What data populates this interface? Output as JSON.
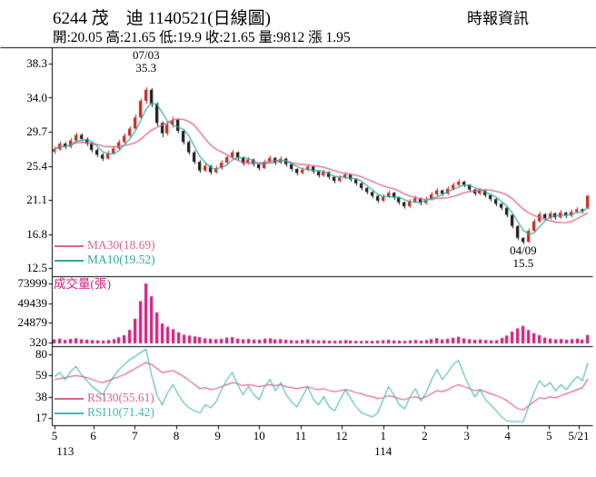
{
  "header": {
    "title": "6244 茂　迪 1140521(日線圖)",
    "source": "時報資訊",
    "info": "開:20.05 高:21.65 低:19.9 收:21.65 量:9812 漲 1.95"
  },
  "legends": {
    "ma30": "MA30(18.69)",
    "ma10": "MA10(19.52)",
    "volume": "成交量(張)",
    "rsi30": "RSI30(55.61)",
    "rsi10": "RSI10(71.42)"
  },
  "annotations": {
    "peak_date": "07/03",
    "peak_value": "35.3",
    "trough_date": "04/09",
    "trough_value": "15.5"
  },
  "colors": {
    "up": "#c9271c",
    "down": "#1c1c1c",
    "ma30": "#e0638f",
    "ma10": "#2ea8a4",
    "volume": "#d61f7e",
    "rsi30": "#e0638f",
    "rsi10": "#49b8b4",
    "axis": "#000000"
  },
  "chart_data": {
    "type": "candlestick",
    "title": "6244 茂　迪 1140521(日線圖)",
    "price_range": [
      12.5,
      38.3
    ],
    "volume_range": [
      320,
      73999
    ],
    "rsi_range": [
      17,
      80
    ],
    "price_ticks": [
      "38.3",
      "34.0",
      "29.7",
      "25.4",
      "21.1",
      "16.8",
      "12.5"
    ],
    "volume_ticks": [
      "73999",
      "49439",
      "24879",
      "320"
    ],
    "rsi_ticks": [
      "80",
      "59",
      "38",
      "17"
    ],
    "x_ticks": [
      {
        "label": "5",
        "pos": 0.5
      },
      {
        "label": "6",
        "pos": 7.7
      },
      {
        "label": "7",
        "pos": 15.4
      },
      {
        "label": "8",
        "pos": 23.1
      },
      {
        "label": "9",
        "pos": 30.8
      },
      {
        "label": "10",
        "pos": 38.5
      },
      {
        "label": "11",
        "pos": 46.2
      },
      {
        "label": "12",
        "pos": 53.8
      },
      {
        "label": "1",
        "pos": 61.5
      },
      {
        "label": "2",
        "pos": 69.2
      },
      {
        "label": "3",
        "pos": 77.0
      },
      {
        "label": "4",
        "pos": 84.6
      },
      {
        "label": "5",
        "pos": 92.3
      },
      {
        "label": "5/21",
        "pos": 97.8
      }
    ],
    "year_ticks": [
      {
        "label": "113",
        "pos": 2.5
      },
      {
        "label": "114",
        "pos": 61.5
      }
    ],
    "ohlc_today": {
      "open": 20.05,
      "high": 21.65,
      "low": 19.9,
      "close": 21.65,
      "volume": 9812,
      "change": 1.95
    },
    "ma30_last": 18.69,
    "ma10_last": 19.52,
    "rsi30_last": 55.61,
    "rsi10_last": 71.42,
    "candles": [
      [
        27.2,
        27.8,
        26.9,
        27.5
      ],
      [
        27.5,
        28.5,
        27.3,
        28.2
      ],
      [
        28.2,
        28.4,
        27.5,
        27.8
      ],
      [
        27.8,
        28.9,
        27.6,
        28.6
      ],
      [
        28.6,
        29.6,
        28.4,
        29.3
      ],
      [
        29.3,
        29.5,
        28.5,
        28.8
      ],
      [
        28.8,
        29.0,
        27.9,
        28.2
      ],
      [
        28.2,
        28.3,
        27.1,
        27.4
      ],
      [
        27.4,
        27.6,
        26.5,
        26.8
      ],
      [
        26.8,
        27.0,
        26.0,
        26.3
      ],
      [
        26.3,
        27.3,
        26.2,
        27.0
      ],
      [
        27.0,
        27.9,
        26.8,
        27.6
      ],
      [
        27.6,
        28.7,
        27.4,
        28.4
      ],
      [
        28.4,
        29.5,
        28.2,
        29.2
      ],
      [
        29.2,
        30.4,
        29.0,
        30.1
      ],
      [
        30.1,
        31.9,
        29.9,
        31.5
      ],
      [
        31.5,
        33.9,
        31.3,
        33.6
      ],
      [
        33.6,
        35.3,
        33.2,
        35.0
      ],
      [
        35.0,
        35.2,
        32.8,
        33.2
      ],
      [
        33.2,
        33.4,
        30.4,
        30.8
      ],
      [
        30.8,
        31.0,
        29.0,
        29.5
      ],
      [
        29.5,
        30.9,
        29.2,
        30.6
      ],
      [
        30.6,
        31.6,
        30.2,
        31.2
      ],
      [
        31.2,
        31.3,
        29.5,
        29.8
      ],
      [
        29.8,
        30.0,
        28.1,
        28.4
      ],
      [
        28.4,
        28.6,
        26.8,
        27.1
      ],
      [
        27.1,
        27.3,
        25.6,
        25.9
      ],
      [
        25.9,
        26.1,
        24.5,
        24.8
      ],
      [
        24.8,
        25.7,
        24.6,
        25.4
      ],
      [
        25.4,
        25.5,
        24.3,
        24.6
      ],
      [
        24.6,
        25.4,
        24.4,
        25.1
      ],
      [
        25.1,
        26.1,
        24.9,
        25.8
      ],
      [
        25.8,
        26.8,
        25.6,
        26.5
      ],
      [
        26.5,
        27.4,
        26.3,
        27.1
      ],
      [
        27.1,
        27.2,
        26.1,
        26.4
      ],
      [
        26.4,
        26.6,
        25.4,
        25.7
      ],
      [
        25.7,
        26.5,
        25.5,
        26.2
      ],
      [
        26.2,
        26.3,
        25.3,
        25.6
      ],
      [
        25.6,
        25.8,
        24.8,
        25.1
      ],
      [
        25.1,
        26.2,
        25.0,
        25.9
      ],
      [
        25.9,
        26.7,
        25.7,
        26.4
      ],
      [
        26.4,
        26.5,
        25.5,
        25.8
      ],
      [
        25.8,
        26.6,
        25.6,
        26.3
      ],
      [
        26.3,
        26.4,
        25.3,
        25.6
      ],
      [
        25.6,
        25.7,
        24.7,
        25.0
      ],
      [
        25.0,
        25.1,
        24.2,
        24.5
      ],
      [
        24.5,
        25.2,
        24.3,
        24.9
      ],
      [
        24.9,
        25.6,
        24.7,
        25.3
      ],
      [
        25.3,
        25.4,
        24.4,
        24.7
      ],
      [
        24.7,
        24.8,
        23.9,
        24.2
      ],
      [
        24.2,
        24.9,
        24.0,
        24.6
      ],
      [
        24.6,
        24.7,
        23.7,
        24.0
      ],
      [
        24.0,
        24.1,
        23.2,
        23.5
      ],
      [
        23.5,
        24.2,
        23.3,
        23.9
      ],
      [
        23.9,
        24.6,
        23.7,
        24.3
      ],
      [
        24.3,
        24.4,
        23.4,
        23.7
      ],
      [
        23.7,
        23.8,
        22.9,
        23.2
      ],
      [
        23.2,
        23.3,
        22.3,
        22.6
      ],
      [
        22.6,
        22.7,
        21.8,
        22.1
      ],
      [
        22.1,
        22.2,
        21.3,
        21.6
      ],
      [
        21.6,
        21.7,
        20.7,
        21.0
      ],
      [
        21.0,
        21.8,
        20.8,
        21.5
      ],
      [
        21.5,
        22.3,
        21.3,
        22.0
      ],
      [
        22.0,
        22.1,
        21.1,
        21.4
      ],
      [
        21.4,
        21.5,
        20.5,
        20.8
      ],
      [
        20.8,
        20.9,
        20.0,
        20.3
      ],
      [
        20.3,
        21.2,
        20.1,
        20.9
      ],
      [
        20.9,
        21.6,
        20.7,
        21.3
      ],
      [
        21.3,
        21.4,
        20.4,
        20.7
      ],
      [
        20.7,
        21.5,
        20.5,
        21.2
      ],
      [
        21.2,
        22.1,
        21.0,
        21.8
      ],
      [
        21.8,
        22.6,
        21.6,
        22.3
      ],
      [
        22.3,
        22.4,
        21.6,
        21.9
      ],
      [
        21.9,
        22.8,
        21.7,
        22.5
      ],
      [
        22.5,
        23.3,
        22.3,
        23.0
      ],
      [
        23.0,
        23.7,
        22.8,
        23.4
      ],
      [
        23.4,
        23.5,
        22.7,
        23.0
      ],
      [
        23.0,
        23.1,
        22.1,
        22.4
      ],
      [
        22.4,
        22.5,
        21.6,
        21.9
      ],
      [
        21.9,
        22.6,
        21.7,
        22.3
      ],
      [
        22.3,
        22.4,
        21.4,
        21.7
      ],
      [
        21.7,
        21.8,
        20.9,
        21.2
      ],
      [
        21.2,
        21.3,
        20.3,
        20.6
      ],
      [
        20.6,
        20.7,
        19.8,
        20.1
      ],
      [
        20.1,
        20.2,
        18.9,
        19.2
      ],
      [
        19.2,
        19.3,
        17.5,
        17.8
      ],
      [
        17.8,
        17.9,
        16.0,
        16.3
      ],
      [
        16.3,
        16.4,
        15.5,
        15.8
      ],
      [
        15.8,
        17.5,
        15.7,
        17.2
      ],
      [
        17.2,
        18.7,
        17.0,
        18.4
      ],
      [
        18.4,
        19.6,
        18.2,
        19.3
      ],
      [
        19.3,
        19.4,
        18.5,
        18.8
      ],
      [
        18.8,
        19.7,
        18.6,
        19.4
      ],
      [
        19.4,
        19.5,
        18.6,
        18.9
      ],
      [
        18.9,
        19.8,
        18.7,
        19.5
      ],
      [
        19.5,
        19.6,
        18.8,
        19.1
      ],
      [
        19.1,
        19.9,
        18.9,
        19.6
      ],
      [
        19.6,
        20.2,
        19.4,
        19.9
      ],
      [
        19.9,
        20.0,
        19.4,
        19.7
      ],
      [
        20.05,
        21.65,
        19.9,
        21.65
      ]
    ],
    "volumes": [
      4200,
      5100,
      3600,
      4800,
      5600,
      4300,
      3900,
      3400,
      3000,
      2800,
      3500,
      4600,
      6800,
      9500,
      16000,
      30000,
      52000,
      73999,
      58000,
      38000,
      24000,
      20000,
      17000,
      13000,
      10000,
      9000,
      8000,
      7000,
      5500,
      5000,
      4500,
      5000,
      6500,
      7000,
      5200,
      4300,
      4800,
      4000,
      3800,
      5200,
      5600,
      4200,
      4600,
      3900,
      3400,
      3000,
      3600,
      4200,
      3300,
      2900,
      3200,
      2700,
      2500,
      2900,
      3300,
      2800,
      2500,
      2300,
      2600,
      2400,
      2800,
      3200,
      3800,
      2900,
      2600,
      2400,
      3100,
      3500,
      2700,
      3400,
      4600,
      5800,
      4100,
      5000,
      6200,
      7500,
      5600,
      4400,
      3700,
      4300,
      3500,
      3000,
      3300,
      6000,
      9000,
      14000,
      18000,
      21000,
      16000,
      12000,
      9500,
      6500,
      5200,
      4300,
      4800,
      3900,
      4500,
      5200,
      4100,
      9812
    ],
    "rsi30": [
      55,
      56,
      57,
      58,
      59,
      58,
      57,
      55,
      53,
      52,
      54,
      56,
      58,
      60,
      63,
      66,
      69,
      72,
      70,
      66,
      62,
      63,
      64,
      61,
      58,
      54,
      50,
      46,
      47,
      45,
      46,
      48,
      50,
      52,
      51,
      49,
      50,
      49,
      48,
      49,
      50,
      49,
      50,
      48,
      47,
      46,
      47,
      48,
      46,
      45,
      46,
      44,
      43,
      44,
      45,
      44,
      42,
      41,
      39,
      38,
      36,
      37,
      39,
      38,
      36,
      35,
      37,
      38,
      36,
      38,
      41,
      44,
      43,
      45,
      48,
      50,
      48,
      46,
      44,
      45,
      43,
      41,
      39,
      37,
      34,
      30,
      26,
      25,
      29,
      33,
      37,
      36,
      38,
      37,
      39,
      41,
      43,
      45,
      47,
      55.61
    ],
    "rsi10": [
      58,
      62,
      55,
      63,
      68,
      60,
      54,
      48,
      44,
      40,
      50,
      58,
      65,
      70,
      75,
      78,
      82,
      85,
      60,
      40,
      30,
      42,
      50,
      40,
      32,
      27,
      24,
      22,
      30,
      27,
      33,
      45,
      55,
      62,
      50,
      40,
      48,
      40,
      35,
      48,
      55,
      44,
      52,
      40,
      33,
      28,
      38,
      48,
      36,
      30,
      38,
      28,
      24,
      35,
      45,
      36,
      28,
      22,
      20,
      18,
      22,
      35,
      48,
      40,
      30,
      26,
      38,
      46,
      34,
      42,
      55,
      65,
      55,
      62,
      70,
      74,
      60,
      48,
      38,
      45,
      35,
      30,
      24,
      18,
      14,
      10,
      8,
      12,
      28,
      42,
      54,
      48,
      52,
      44,
      50,
      45,
      52,
      58,
      54,
      71.42
    ]
  }
}
